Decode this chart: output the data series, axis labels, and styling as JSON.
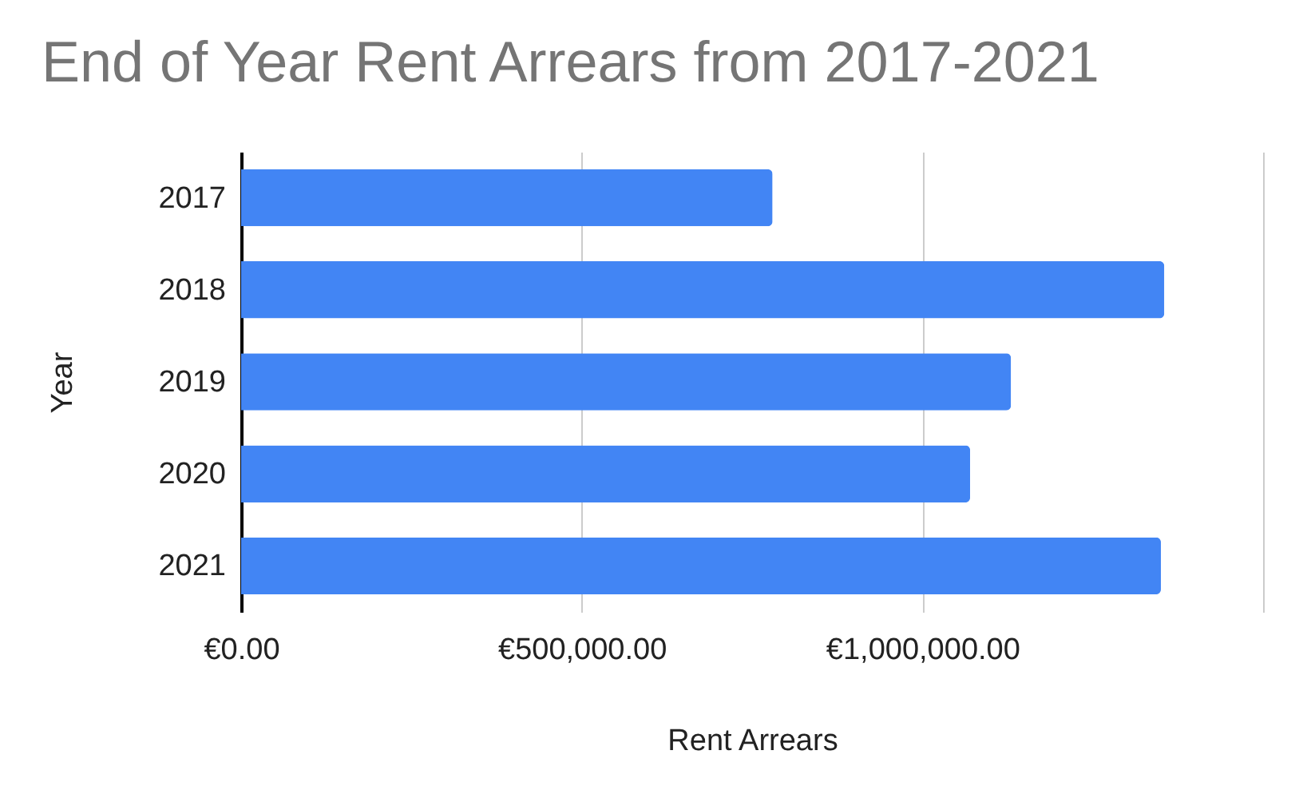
{
  "chart_data": {
    "type": "bar",
    "orientation": "horizontal",
    "title": "End of Year Rent Arrears from 2017-2021",
    "xlabel": "Rent Arrears",
    "ylabel": "Year",
    "categories": [
      "2017",
      "2018",
      "2019",
      "2020",
      "2021"
    ],
    "values": [
      780000,
      1355000,
      1130000,
      1070000,
      1350000
    ],
    "color": "#4285f4",
    "xlim": [
      0,
      1500000
    ],
    "xticks": [
      {
        "value": 0,
        "label": "€0.00"
      },
      {
        "value": 500000,
        "label": "€500,000.00"
      },
      {
        "value": 1000000,
        "label": "€1,000,000.00"
      },
      {
        "value": 1500000,
        "label": null
      }
    ],
    "grid": "x"
  }
}
